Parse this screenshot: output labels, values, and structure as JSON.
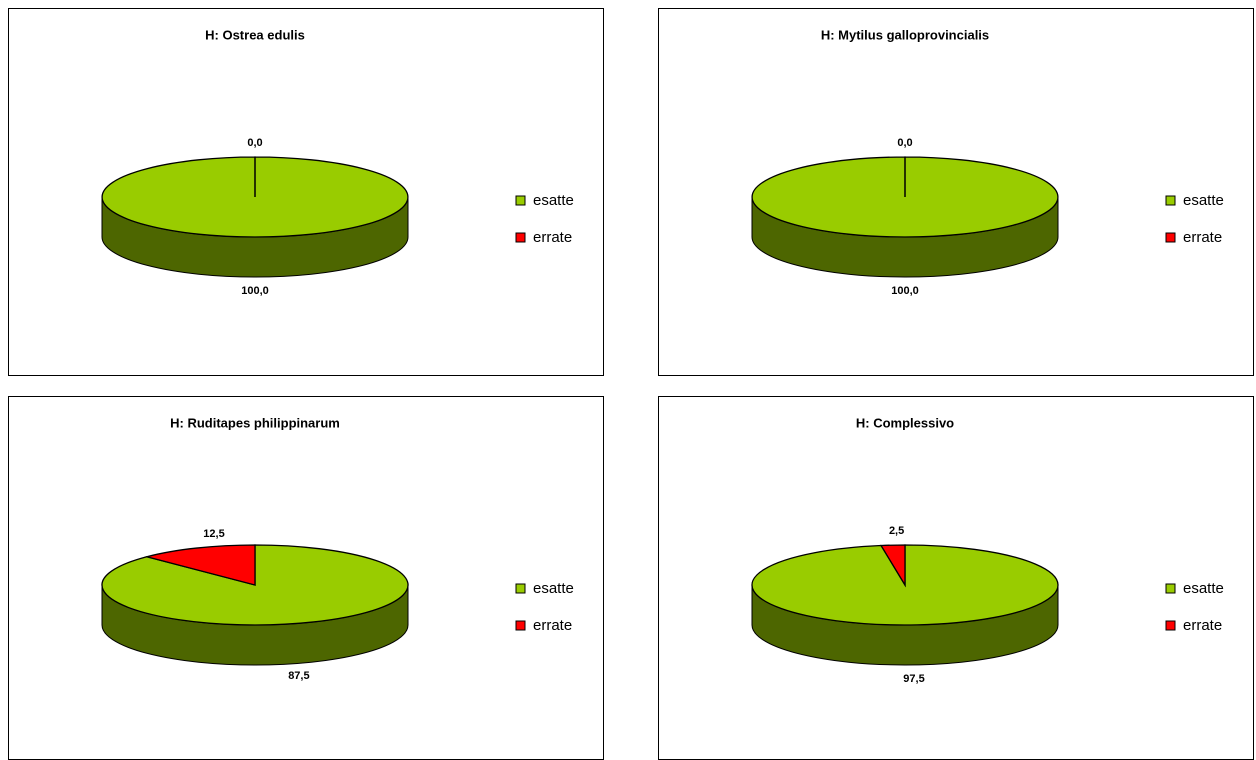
{
  "chart_data": [
    {
      "type": "pie",
      "title": "H: Ostrea edulis",
      "categories": [
        "esatte",
        "errate"
      ],
      "values": [
        100,
        0
      ],
      "value_labels": [
        "100,0",
        "0,0"
      ],
      "colors": [
        "#99cc00",
        "#ff0000"
      ]
    },
    {
      "type": "pie",
      "title": "H: Mytilus galloprovincialis",
      "categories": [
        "esatte",
        "errate"
      ],
      "values": [
        100,
        0
      ],
      "value_labels": [
        "100,0",
        "0,0"
      ],
      "colors": [
        "#99cc00",
        "#ff0000"
      ]
    },
    {
      "type": "pie",
      "title": "H: Ruditapes philippinarum",
      "categories": [
        "esatte",
        "errate"
      ],
      "values": [
        87.5,
        12.5
      ],
      "value_labels": [
        "87,5",
        "12,5"
      ],
      "colors": [
        "#99cc00",
        "#ff0000"
      ]
    },
    {
      "type": "pie",
      "title": "H: Complessivo",
      "categories": [
        "esatte",
        "errate"
      ],
      "values": [
        97.5,
        2.5
      ],
      "value_labels": [
        "97,5",
        "2,5"
      ],
      "colors": [
        "#99cc00",
        "#ff0000"
      ]
    }
  ]
}
